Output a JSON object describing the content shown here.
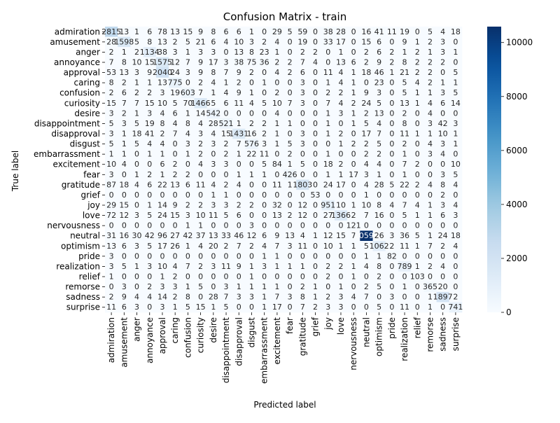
{
  "chart_data": {
    "type": "heatmap",
    "title": "Confusion Matrix - train",
    "xlabel": "Predicted label",
    "ylabel": "True label",
    "labels": [
      "admiration",
      "amusement",
      "anger",
      "annoyance",
      "approval",
      "caring",
      "confusion",
      "curiosity",
      "desire",
      "disappointment",
      "disapproval",
      "disgust",
      "embarrassment",
      "excitement",
      "fear",
      "gratitude",
      "grief",
      "joy",
      "love",
      "nervousness",
      "neutral",
      "optimism",
      "pride",
      "realization",
      "relief",
      "remorse",
      "sadness",
      "surprise"
    ],
    "matrix": [
      [
        2815,
        13,
        1,
        6,
        78,
        13,
        15,
        9,
        8,
        6,
        6,
        1,
        0,
        29,
        5,
        59,
        0,
        38,
        28,
        0,
        16,
        41,
        11,
        19,
        0,
        5,
        4,
        18
      ],
      [
        28,
        1598,
        5,
        8,
        13,
        2,
        5,
        21,
        6,
        4,
        10,
        3,
        2,
        4,
        0,
        19,
        0,
        33,
        17,
        0,
        15,
        6,
        0,
        9,
        1,
        2,
        3,
        0
      ],
      [
        2,
        1,
        2,
        1134,
        38,
        3,
        1,
        3,
        3,
        0,
        13,
        8,
        23,
        1,
        0,
        2,
        2,
        0,
        1,
        0,
        2,
        6,
        2,
        1,
        2,
        1,
        3,
        1
      ],
      [
        7,
        8,
        10,
        15,
        1575,
        12,
        7,
        9,
        17,
        3,
        38,
        75,
        36,
        2,
        2,
        7,
        4,
        0,
        13,
        6,
        2,
        9,
        2,
        8,
        2,
        2,
        2,
        0
      ],
      [
        53,
        13,
        3,
        9,
        2040,
        24,
        3,
        9,
        8,
        7,
        9,
        2,
        0,
        4,
        2,
        6,
        0,
        11,
        4,
        1,
        18,
        46,
        1,
        21,
        2,
        2,
        0,
        5
      ],
      [
        8,
        2,
        1,
        1,
        13,
        775,
        0,
        2,
        4,
        1,
        2,
        0,
        1,
        0,
        0,
        3,
        0,
        1,
        4,
        1,
        0,
        23,
        0,
        5,
        4,
        2,
        1,
        1
      ],
      [
        2,
        6,
        2,
        2,
        3,
        19,
        603,
        7,
        1,
        4,
        9,
        1,
        0,
        2,
        0,
        3,
        0,
        2,
        2,
        1,
        9,
        3,
        0,
        5,
        1,
        1,
        3,
        5
      ],
      [
        15,
        7,
        7,
        15,
        10,
        5,
        70,
        1466,
        5,
        6,
        11,
        4,
        5,
        10,
        7,
        3,
        0,
        7,
        4,
        2,
        24,
        5,
        0,
        13,
        1,
        4,
        6,
        14
      ],
      [
        3,
        2,
        1,
        3,
        4,
        6,
        1,
        14,
        542,
        0,
        0,
        0,
        0,
        4,
        0,
        0,
        0,
        1,
        3,
        1,
        2,
        13,
        0,
        2,
        0,
        4,
        0,
        0
      ],
      [
        5,
        3,
        5,
        19,
        8,
        4,
        8,
        4,
        28,
        521,
        1,
        2,
        2,
        1,
        1,
        0,
        0,
        1,
        0,
        1,
        5,
        4,
        0,
        8,
        0,
        3,
        42,
        3
      ],
      [
        3,
        1,
        18,
        41,
        2,
        7,
        4,
        3,
        4,
        15,
        1431,
        16,
        2,
        1,
        0,
        3,
        0,
        1,
        2,
        0,
        17,
        7,
        0,
        11,
        1,
        1,
        10,
        1
      ],
      [
        5,
        1,
        5,
        4,
        4,
        0,
        3,
        2,
        3,
        2,
        7,
        576,
        3,
        1,
        5,
        3,
        0,
        0,
        1,
        2,
        2,
        5,
        0,
        2,
        0,
        4,
        3,
        1
      ],
      [
        1,
        1,
        0,
        1,
        1,
        0,
        1,
        2,
        0,
        2,
        1,
        22,
        11,
        0,
        2,
        0,
        0,
        1,
        0,
        0,
        2,
        2,
        0,
        1,
        0,
        3,
        4,
        0
      ],
      [
        10,
        4,
        0,
        0,
        6,
        2,
        0,
        4,
        3,
        3,
        0,
        0,
        5,
        84,
        1,
        5,
        0,
        18,
        2,
        0,
        4,
        4,
        0,
        7,
        2,
        0,
        0,
        10
      ],
      [
        3,
        0,
        1,
        2,
        1,
        2,
        2,
        0,
        0,
        0,
        1,
        1,
        1,
        0,
        426,
        0,
        0,
        1,
        1,
        17,
        3,
        1,
        0,
        1,
        0,
        0,
        3,
        5
      ],
      [
        87,
        18,
        4,
        6,
        22,
        13,
        6,
        11,
        4,
        2,
        4,
        0,
        0,
        11,
        1,
        1803,
        0,
        24,
        17,
        0,
        4,
        28,
        5,
        22,
        2,
        4,
        8,
        4
      ],
      [
        0,
        0,
        0,
        0,
        0,
        0,
        0,
        0,
        1,
        1,
        0,
        0,
        0,
        0,
        0,
        0,
        53,
        0,
        0,
        0,
        1,
        0,
        0,
        0,
        0,
        0,
        2,
        0
      ],
      [
        29,
        15,
        0,
        1,
        14,
        9,
        2,
        2,
        3,
        3,
        2,
        2,
        0,
        32,
        0,
        12,
        0,
        951,
        10,
        1,
        10,
        8,
        4,
        7,
        4,
        1,
        3,
        4
      ],
      [
        72,
        12,
        3,
        5,
        24,
        15,
        3,
        10,
        11,
        5,
        6,
        0,
        0,
        13,
        2,
        12,
        0,
        27,
        1366,
        2,
        7,
        16,
        0,
        5,
        1,
        1,
        6,
        3
      ],
      [
        0,
        0,
        0,
        0,
        0,
        0,
        1,
        1,
        0,
        0,
        0,
        3,
        0,
        0,
        0,
        0,
        0,
        0,
        0,
        121,
        0,
        0,
        0,
        0,
        0,
        0,
        0,
        0
      ],
      [
        31,
        16,
        30,
        42,
        96,
        27,
        42,
        37,
        13,
        33,
        46,
        12,
        6,
        9,
        13,
        4,
        1,
        12,
        15,
        7,
        10590,
        26,
        3,
        36,
        5,
        1,
        24,
        18
      ],
      [
        13,
        6,
        3,
        5,
        17,
        26,
        1,
        4,
        20,
        2,
        7,
        2,
        4,
        7,
        3,
        11,
        0,
        10,
        1,
        1,
        5,
        1062,
        2,
        11,
        1,
        7,
        2,
        4
      ],
      [
        3,
        0,
        0,
        0,
        0,
        0,
        0,
        0,
        0,
        0,
        0,
        0,
        1,
        1,
        0,
        0,
        0,
        0,
        0,
        0,
        1,
        1,
        82,
        0,
        0,
        0,
        0,
        0
      ],
      [
        3,
        5,
        1,
        3,
        10,
        4,
        7,
        2,
        3,
        11,
        9,
        1,
        3,
        1,
        1,
        1,
        0,
        2,
        2,
        1,
        4,
        8,
        0,
        789,
        1,
        2,
        4,
        0
      ],
      [
        1,
        0,
        0,
        0,
        1,
        2,
        0,
        0,
        0,
        0,
        0,
        1,
        0,
        0,
        0,
        0,
        0,
        2,
        0,
        1,
        0,
        2,
        0,
        0,
        103,
        0,
        0,
        0
      ],
      [
        0,
        3,
        0,
        2,
        3,
        3,
        1,
        5,
        0,
        3,
        1,
        1,
        1,
        1,
        0,
        2,
        1,
        0,
        1,
        0,
        2,
        5,
        0,
        1,
        0,
        365,
        20,
        0
      ],
      [
        2,
        9,
        4,
        4,
        14,
        2,
        8,
        0,
        28,
        7,
        3,
        3,
        1,
        7,
        3,
        8,
        1,
        2,
        3,
        4,
        7,
        0,
        3,
        0,
        0,
        1,
        1897,
        2
      ],
      [
        11,
        6,
        3,
        0,
        3,
        1,
        5,
        15,
        1,
        5,
        0,
        0,
        1,
        17,
        0,
        7,
        2,
        3,
        3,
        0,
        0,
        5,
        0,
        11,
        0,
        1,
        0,
        741
      ]
    ],
    "colorbar": {
      "min": 0,
      "max": 10590,
      "ticks": [
        0,
        2000,
        4000,
        6000,
        8000,
        10000
      ],
      "colormap": "Blues",
      "low_color": "#f7fbff",
      "high_color": "#08306b"
    }
  }
}
